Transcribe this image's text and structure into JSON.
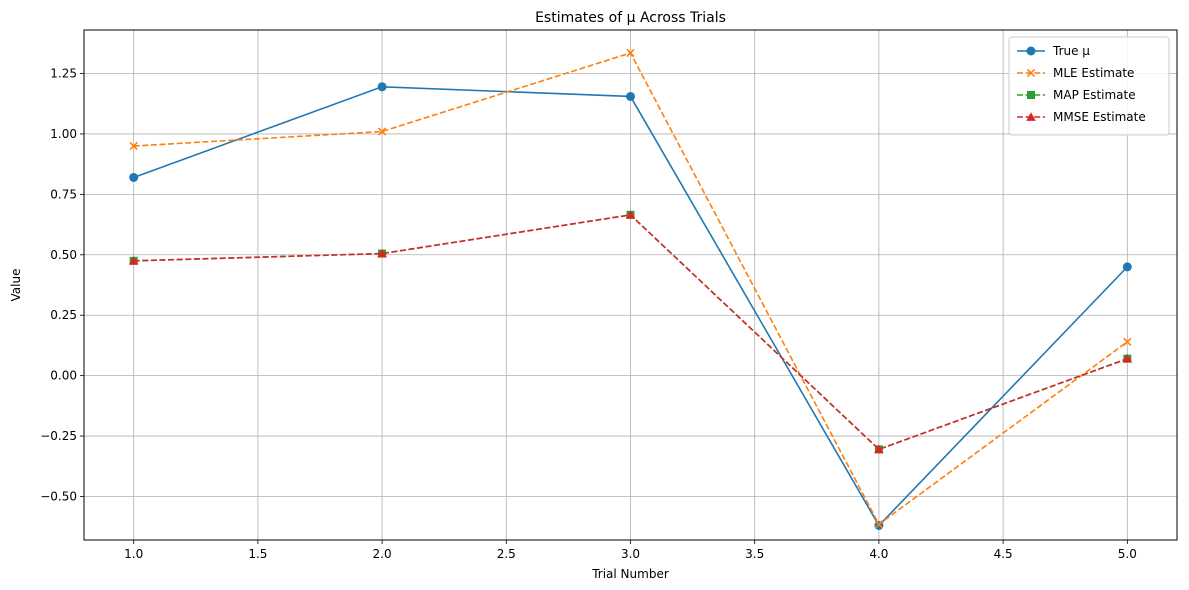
{
  "chart_data": {
    "type": "line",
    "title": "Estimates of μ Across Trials",
    "xlabel": "Trial Number",
    "ylabel": "Value",
    "x": [
      1,
      2,
      3,
      4,
      5
    ],
    "xlim": [
      0.8,
      5.2
    ],
    "ylim": [
      -0.68,
      1.43
    ],
    "xticks": [
      1.0,
      1.5,
      2.0,
      2.5,
      3.0,
      3.5,
      4.0,
      4.5,
      5.0
    ],
    "xtick_labels": [
      "1.0",
      "1.5",
      "2.0",
      "2.5",
      "3.0",
      "3.5",
      "4.0",
      "4.5",
      "5.0"
    ],
    "yticks": [
      -0.5,
      -0.25,
      0.0,
      0.25,
      0.5,
      0.75,
      1.0,
      1.25
    ],
    "ytick_labels": [
      "−0.50",
      "−0.25",
      "0.00",
      "0.25",
      "0.50",
      "0.75",
      "1.00",
      "1.25"
    ],
    "grid": true,
    "legend_position": "top-right",
    "series": [
      {
        "name": "True μ",
        "values": [
          0.82,
          1.195,
          1.155,
          -0.62,
          0.45
        ],
        "color": "#1f77b4",
        "line": "solid",
        "marker": "circle"
      },
      {
        "name": "MLE Estimate",
        "values": [
          0.95,
          1.01,
          1.335,
          -0.615,
          0.14
        ],
        "color": "#ff7f0e",
        "line": "dashed",
        "marker": "x"
      },
      {
        "name": "MAP Estimate",
        "values": [
          0.475,
          0.505,
          0.665,
          -0.305,
          0.07
        ],
        "color": "#2ca02c",
        "line": "dashed",
        "marker": "square"
      },
      {
        "name": "MMSE Estimate",
        "values": [
          0.475,
          0.505,
          0.665,
          -0.305,
          0.07
        ],
        "color": "#d62728",
        "line": "dashed",
        "marker": "triangle"
      }
    ]
  }
}
